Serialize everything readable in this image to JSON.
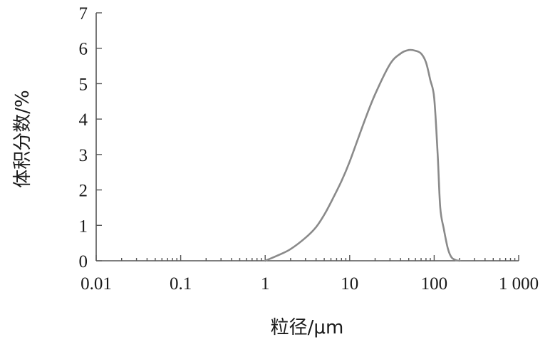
{
  "chart_data": {
    "type": "line",
    "title": "",
    "xlabel": "粒径/μm",
    "ylabel": "体积分数/%",
    "xscale": "log",
    "xlim": [
      0.01,
      1000
    ],
    "ylim": [
      0,
      7
    ],
    "grid": false,
    "legend": "none",
    "x_tick_labels": [
      "0.01",
      "0.1",
      "1",
      "10",
      "100",
      "1 000"
    ],
    "x_tick_values": [
      0.01,
      0.1,
      1,
      10,
      100,
      1000
    ],
    "y_tick_labels": [
      "0",
      "1",
      "2",
      "3",
      "4",
      "5",
      "6",
      "7"
    ],
    "y_tick_values": [
      0,
      1,
      2,
      3,
      4,
      5,
      6,
      7
    ],
    "series": [
      {
        "color": "#8a8a8a",
        "points": [
          {
            "x": 1.0,
            "y": 0.0
          },
          {
            "x": 1.5,
            "y": 0.18
          },
          {
            "x": 2.0,
            "y": 0.33
          },
          {
            "x": 3.0,
            "y": 0.65
          },
          {
            "x": 4.0,
            "y": 0.95
          },
          {
            "x": 5.0,
            "y": 1.3
          },
          {
            "x": 6.0,
            "y": 1.65
          },
          {
            "x": 8.0,
            "y": 2.25
          },
          {
            "x": 10.0,
            "y": 2.8
          },
          {
            "x": 15.0,
            "y": 3.95
          },
          {
            "x": 20.0,
            "y": 4.7
          },
          {
            "x": 30.0,
            "y": 5.55
          },
          {
            "x": 40.0,
            "y": 5.85
          },
          {
            "x": 50.0,
            "y": 5.95
          },
          {
            "x": 60.0,
            "y": 5.93
          },
          {
            "x": 70.0,
            "y": 5.85
          },
          {
            "x": 80.0,
            "y": 5.6
          },
          {
            "x": 90.0,
            "y": 5.1
          },
          {
            "x": 100.0,
            "y": 4.6
          },
          {
            "x": 110.0,
            "y": 3.0
          },
          {
            "x": 118.0,
            "y": 1.5
          },
          {
            "x": 130.0,
            "y": 0.9
          },
          {
            "x": 145.0,
            "y": 0.35
          },
          {
            "x": 160.0,
            "y": 0.1
          },
          {
            "x": 180.0,
            "y": 0.02
          },
          {
            "x": 200.0,
            "y": 0.0
          }
        ]
      }
    ]
  }
}
